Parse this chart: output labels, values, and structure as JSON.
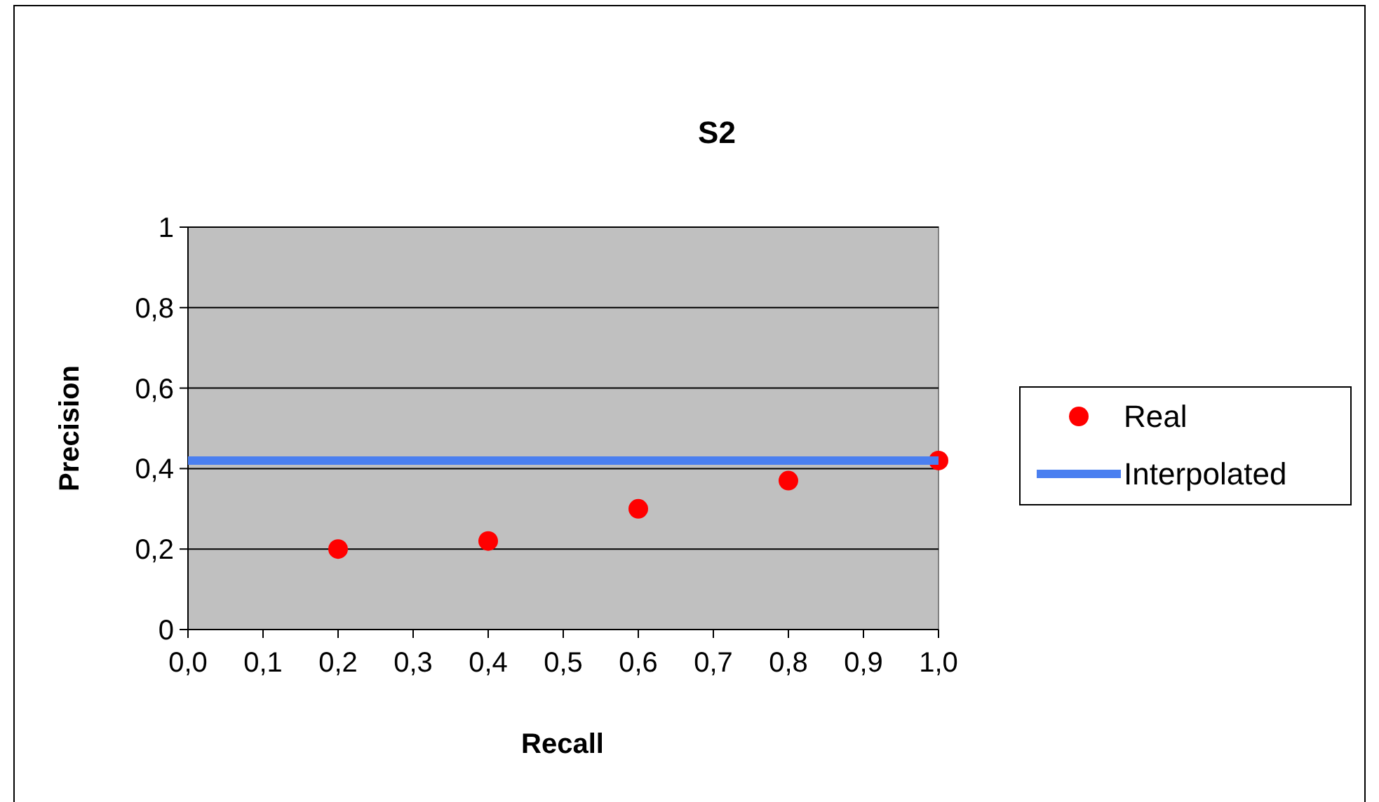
{
  "chart_data": {
    "type": "scatter",
    "title": "S2",
    "xlabel": "Recall",
    "ylabel": "Precision",
    "series": [
      {
        "name": "Real",
        "type": "scatter",
        "color": "#ff0000",
        "marker": "circle",
        "x": [
          0.2,
          0.4,
          0.6,
          0.8,
          1.0
        ],
        "values": [
          0.2,
          0.22,
          0.3,
          0.37,
          0.42
        ]
      },
      {
        "name": "Interpolated",
        "type": "line",
        "color": "#4a7ff0",
        "marker": "none",
        "line_style": "solid",
        "x": [
          0,
          1
        ],
        "values": [
          0.42,
          0.42
        ]
      }
    ],
    "xlim": [
      0,
      1
    ],
    "xticks": [
      {
        "value": 0,
        "label": "0,0"
      },
      {
        "value": 0.1,
        "label": "0,1"
      },
      {
        "value": 0.2,
        "label": "0,2"
      },
      {
        "value": 0.3,
        "label": "0,3"
      },
      {
        "value": 0.4,
        "label": "0,4"
      },
      {
        "value": 0.5,
        "label": "0,5"
      },
      {
        "value": 0.6,
        "label": "0,6"
      },
      {
        "value": 0.7,
        "label": "0,7"
      },
      {
        "value": 0.8,
        "label": "0,8"
      },
      {
        "value": 0.9,
        "label": "0,9"
      },
      {
        "value": 1,
        "label": "1,0"
      }
    ],
    "ylim": [
      0,
      1
    ],
    "yticks": [
      0,
      {
        "value": 0.2,
        "label": "0,2"
      },
      {
        "value": 0.4,
        "label": "0,4"
      },
      {
        "value": 0.6,
        "label": "0,6"
      },
      {
        "value": 0.8,
        "label": "0,8"
      },
      1
    ],
    "grid": "y",
    "legend": "right"
  }
}
